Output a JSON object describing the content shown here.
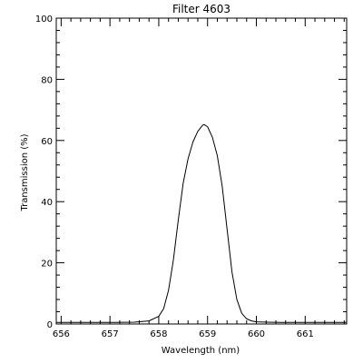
{
  "chart_data": {
    "type": "line",
    "title": "Filter 4603",
    "xlabel": "Wavelength (nm)",
    "ylabel": "Transmission (%)",
    "xlim": [
      655.9,
      661.85
    ],
    "ylim": [
      0,
      100
    ],
    "x_ticks": [
      656,
      657,
      658,
      659,
      660,
      661
    ],
    "y_ticks": [
      0,
      20,
      40,
      60,
      80,
      100
    ],
    "x_tick_labels": [
      "656",
      "657",
      "658",
      "659",
      "660",
      "661"
    ],
    "y_tick_labels": [
      "0",
      "20",
      "40",
      "60",
      "80",
      "100"
    ],
    "grid": false,
    "series": [
      {
        "name": "",
        "x": [
          655.9,
          657.0,
          657.5,
          657.8,
          658.0,
          658.1,
          658.2,
          658.3,
          658.4,
          658.5,
          658.6,
          658.7,
          658.8,
          658.9,
          658.93,
          659.0,
          659.1,
          659.2,
          659.3,
          659.4,
          659.5,
          659.6,
          659.7,
          659.8,
          659.9,
          660.0,
          660.2,
          660.5,
          661.0,
          661.85
        ],
        "y": [
          0.5,
          0.5,
          0.6,
          1.0,
          2.5,
          5.0,
          11.0,
          21.0,
          34.0,
          46.0,
          54.0,
          59.5,
          63.0,
          65.0,
          65.2,
          64.5,
          61.0,
          55.0,
          45.0,
          31.0,
          17.0,
          8.0,
          3.5,
          1.7,
          1.0,
          0.7,
          0.6,
          0.5,
          0.5,
          0.5
        ]
      }
    ]
  }
}
